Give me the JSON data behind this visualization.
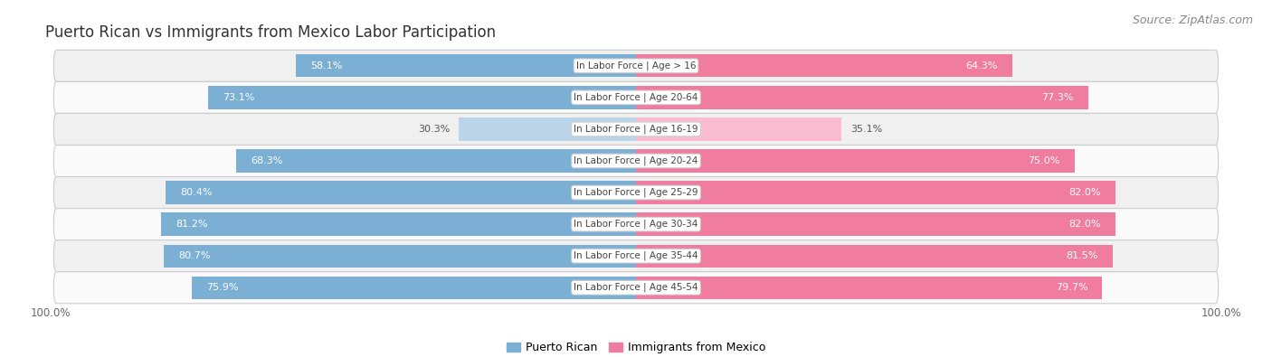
{
  "title": "Puerto Rican vs Immigrants from Mexico Labor Participation",
  "source": "Source: ZipAtlas.com",
  "categories": [
    "In Labor Force | Age > 16",
    "In Labor Force | Age 20-64",
    "In Labor Force | Age 16-19",
    "In Labor Force | Age 20-24",
    "In Labor Force | Age 25-29",
    "In Labor Force | Age 30-34",
    "In Labor Force | Age 35-44",
    "In Labor Force | Age 45-54"
  ],
  "puerto_rican": [
    58.1,
    73.1,
    30.3,
    68.3,
    80.4,
    81.2,
    80.7,
    75.9
  ],
  "immigrants_mexico": [
    64.3,
    77.3,
    35.1,
    75.0,
    82.0,
    82.0,
    81.5,
    79.7
  ],
  "puerto_rican_color": "#7bafd4",
  "immigrants_mexico_color": "#f07ca0",
  "puerto_rican_light_color": "#bad4ea",
  "immigrants_mexico_light_color": "#f9bcd0",
  "title_fontsize": 12,
  "source_fontsize": 9,
  "label_fontsize": 7.5,
  "value_fontsize": 8,
  "axis_max": 100.0,
  "legend_label_pr": "Puerto Rican",
  "legend_label_im": "Immigrants from Mexico",
  "row_bg_even": "#f0f0f0",
  "row_bg_odd": "#fafafa",
  "row_border": "#dddddd"
}
